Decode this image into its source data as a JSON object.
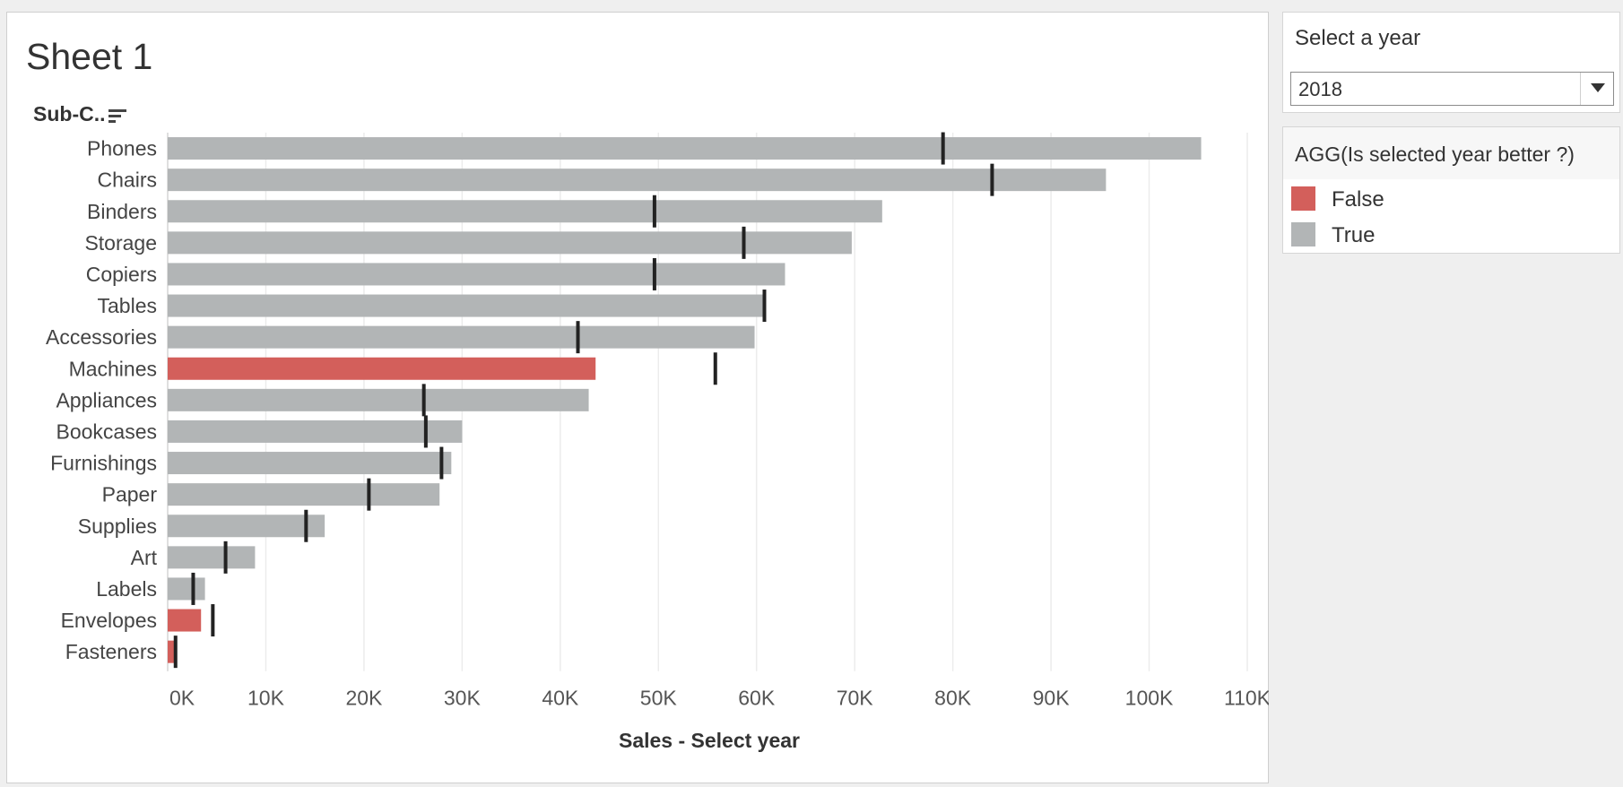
{
  "sheet": {
    "title": "Sheet 1",
    "row_header": "Sub-C.."
  },
  "filter": {
    "title": "Select a year",
    "selected": "2018"
  },
  "legend": {
    "title": "AGG(Is selected year better ?)",
    "items": [
      {
        "label": "False",
        "color": "#d35f5b"
      },
      {
        "label": "True",
        "color": "#b2b5b6"
      }
    ]
  },
  "colors": {
    "true_bar": "#b2b5b6",
    "false_bar": "#d35f5b",
    "reference_mark": "#222222",
    "grid": "#ececec"
  },
  "chart_data": {
    "type": "bar",
    "orientation": "horizontal",
    "xlabel": "Sales - Select year",
    "xlim": [
      0,
      110000
    ],
    "x_ticks": [
      "0K",
      "10K",
      "20K",
      "30K",
      "40K",
      "50K",
      "60K",
      "70K",
      "80K",
      "90K",
      "100K",
      "110K"
    ],
    "categories": [
      "Phones",
      "Chairs",
      "Binders",
      "Storage",
      "Copiers",
      "Tables",
      "Accessories",
      "Machines",
      "Appliances",
      "Bookcases",
      "Furnishings",
      "Paper",
      "Supplies",
      "Art",
      "Labels",
      "Envelopes",
      "Fasteners"
    ],
    "values": [
      105300,
      95600,
      72800,
      69700,
      62900,
      60800,
      59800,
      43600,
      42900,
      30000,
      28900,
      27700,
      16000,
      8900,
      3800,
      3400,
      700
    ],
    "reference_values": [
      79000,
      84000,
      49600,
      58700,
      49600,
      60800,
      41800,
      55800,
      26100,
      26300,
      27900,
      20500,
      14100,
      5900,
      2600,
      4600,
      800
    ],
    "is_selected_year_better": [
      true,
      true,
      true,
      true,
      true,
      true,
      true,
      false,
      true,
      true,
      true,
      true,
      true,
      true,
      true,
      false,
      false
    ]
  }
}
